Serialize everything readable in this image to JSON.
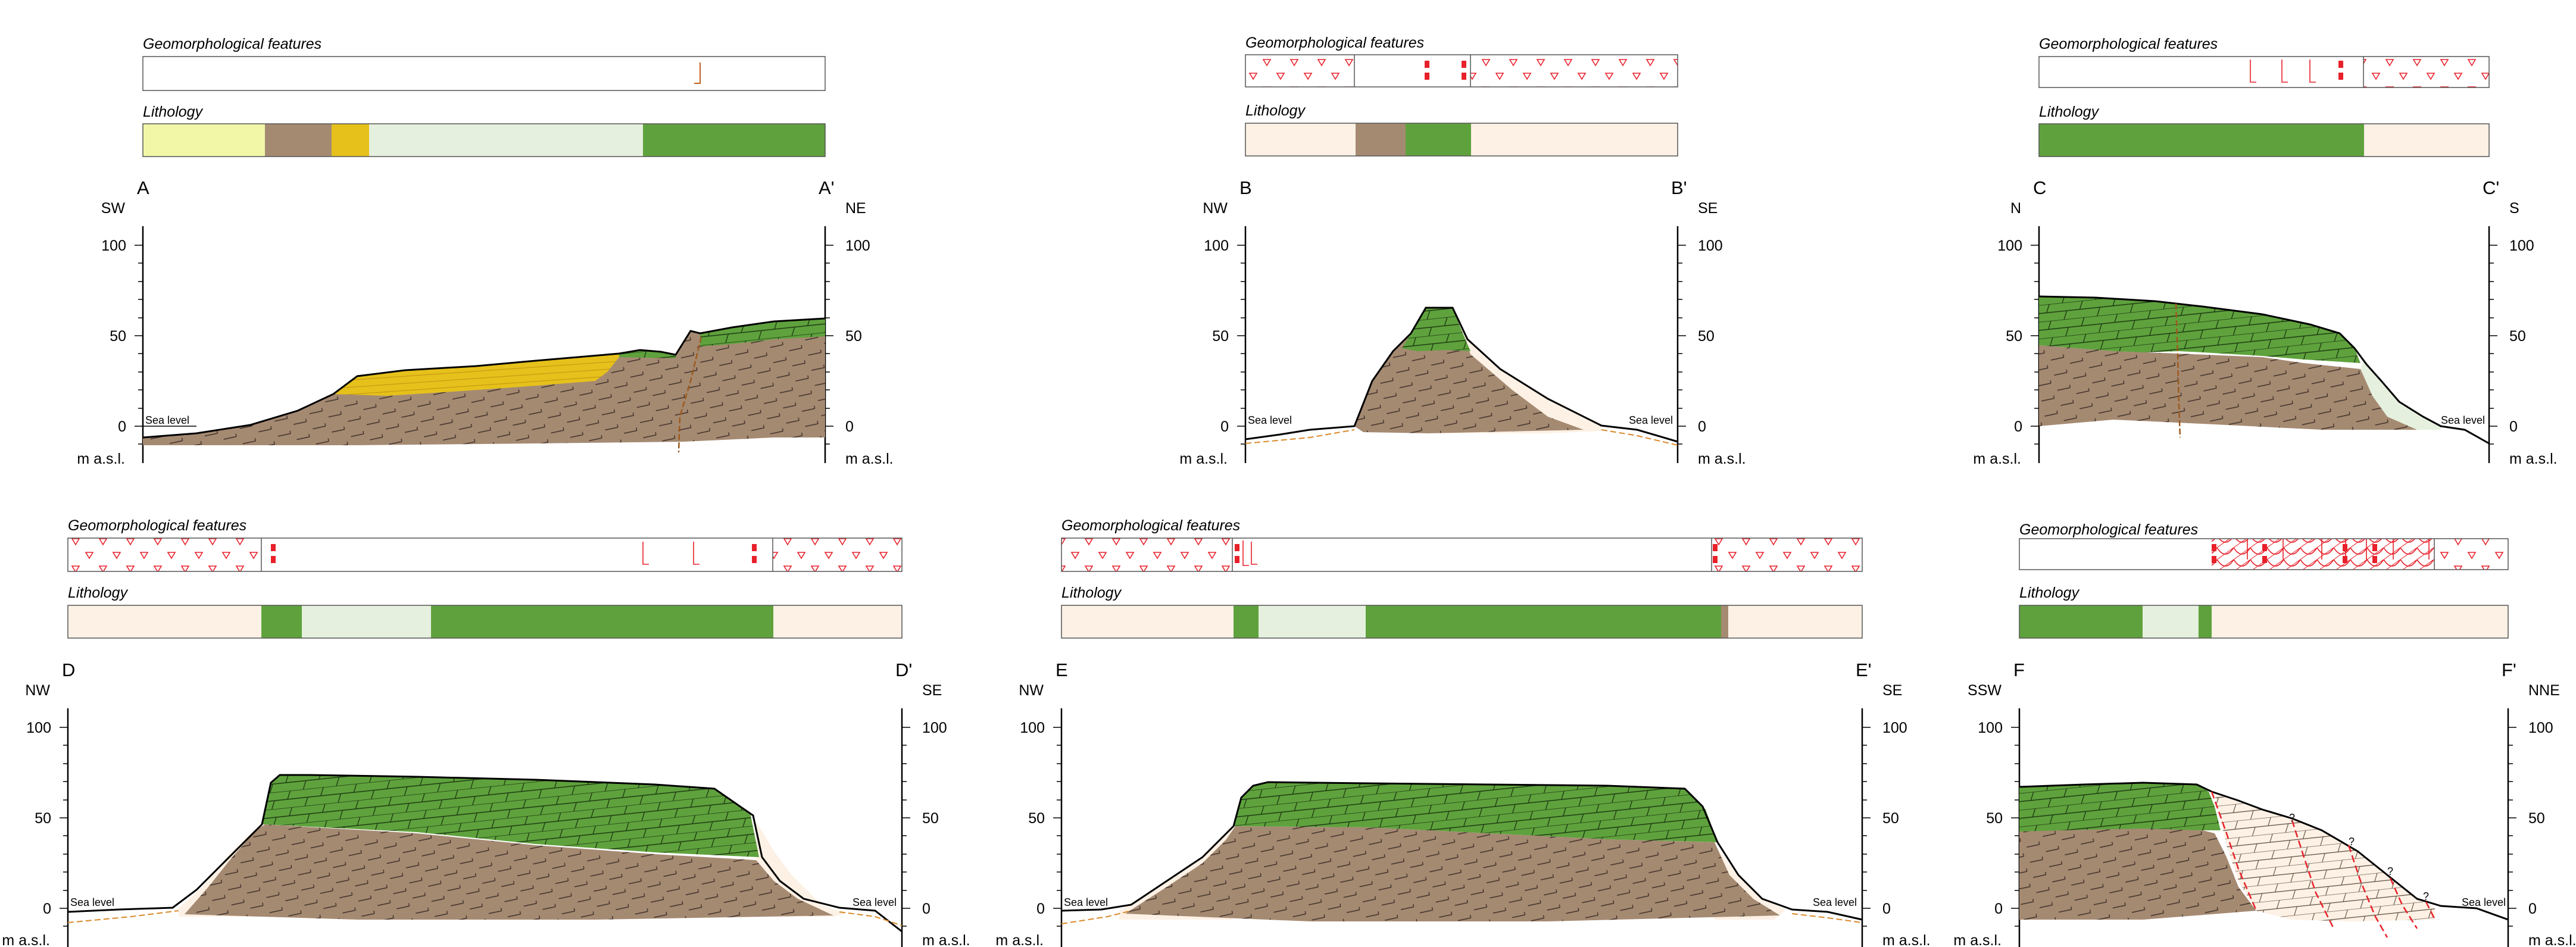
{
  "labels": {
    "geomorph": "Geomorphological features",
    "lithology": "Lithology",
    "sea_level": "Sea level",
    "units": "m a.s.l.",
    "fault_query": "?"
  },
  "ticks": [
    "100",
    "50",
    "0"
  ],
  "colors": {
    "limestone_green": "#5fa23d",
    "sandstone_brown": "#a58a72",
    "yellow_deposit": "#e6c11b",
    "light_yellow": "#f2f7a8",
    "pale_green": "#e6f0de",
    "beach_pink": "#fdf1e5",
    "symbol_red": "#e8202a",
    "fault_brown": "#9c5a1e"
  },
  "sections": [
    {
      "id": "A",
      "start": "A",
      "end": "A'",
      "dir_left": "SW",
      "dir_right": "NE"
    },
    {
      "id": "B",
      "start": "B",
      "end": "B'",
      "dir_left": "NW",
      "dir_right": "SE"
    },
    {
      "id": "C",
      "start": "C",
      "end": "C'",
      "dir_left": "N",
      "dir_right": "S"
    },
    {
      "id": "D",
      "start": "D",
      "end": "D'",
      "dir_left": "NW",
      "dir_right": "SE"
    },
    {
      "id": "E",
      "start": "E",
      "end": "E'",
      "dir_left": "NW",
      "dir_right": "SE"
    },
    {
      "id": "F",
      "start": "F",
      "end": "F'",
      "dir_left": "SSW",
      "dir_right": "NNE"
    }
  ]
}
